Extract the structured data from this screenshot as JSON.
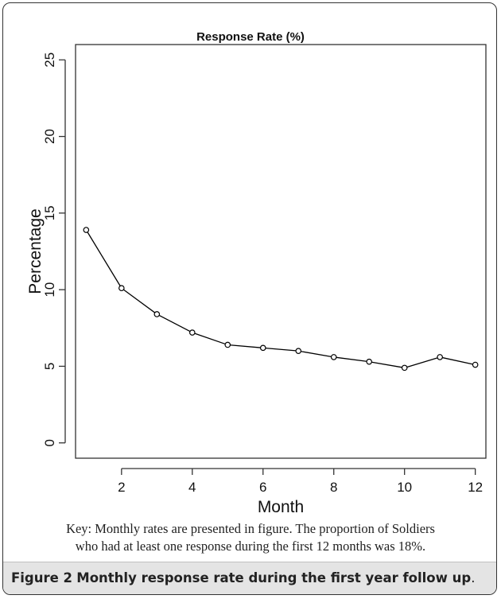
{
  "chart_data": {
    "type": "line",
    "title": "Response Rate (%)",
    "xlabel": "Month",
    "ylabel": "Percentage",
    "xlim": [
      0.7,
      12.3
    ],
    "ylim": [
      -1,
      26
    ],
    "x_ticks": [
      2,
      4,
      6,
      8,
      10,
      12
    ],
    "x_tick_labels": [
      "2",
      "4",
      "6",
      "8",
      "10",
      "12"
    ],
    "y_ticks": [
      0,
      5,
      10,
      15,
      20,
      25
    ],
    "y_tick_labels": [
      "0",
      "5",
      "10",
      "15",
      "20",
      "25"
    ],
    "grid": false,
    "series": [
      {
        "x": [
          1,
          2,
          3,
          4,
          5,
          6,
          7,
          8,
          9,
          10,
          11,
          12
        ],
        "values": [
          13.9,
          10.1,
          8.4,
          7.2,
          6.4,
          6.2,
          6.0,
          5.6,
          5.3,
          4.9,
          5.6,
          5.1
        ]
      }
    ],
    "line_color": "#000000"
  },
  "key_note": {
    "line1": "Key: Monthly rates are presented in figure.  The proportion of Soldiers",
    "line2": "who had at least one response during the first 12 months was 18%."
  },
  "caption": {
    "label": "Figure 2",
    "text": "Monthly response rate during the first year follow up",
    "end": "."
  }
}
